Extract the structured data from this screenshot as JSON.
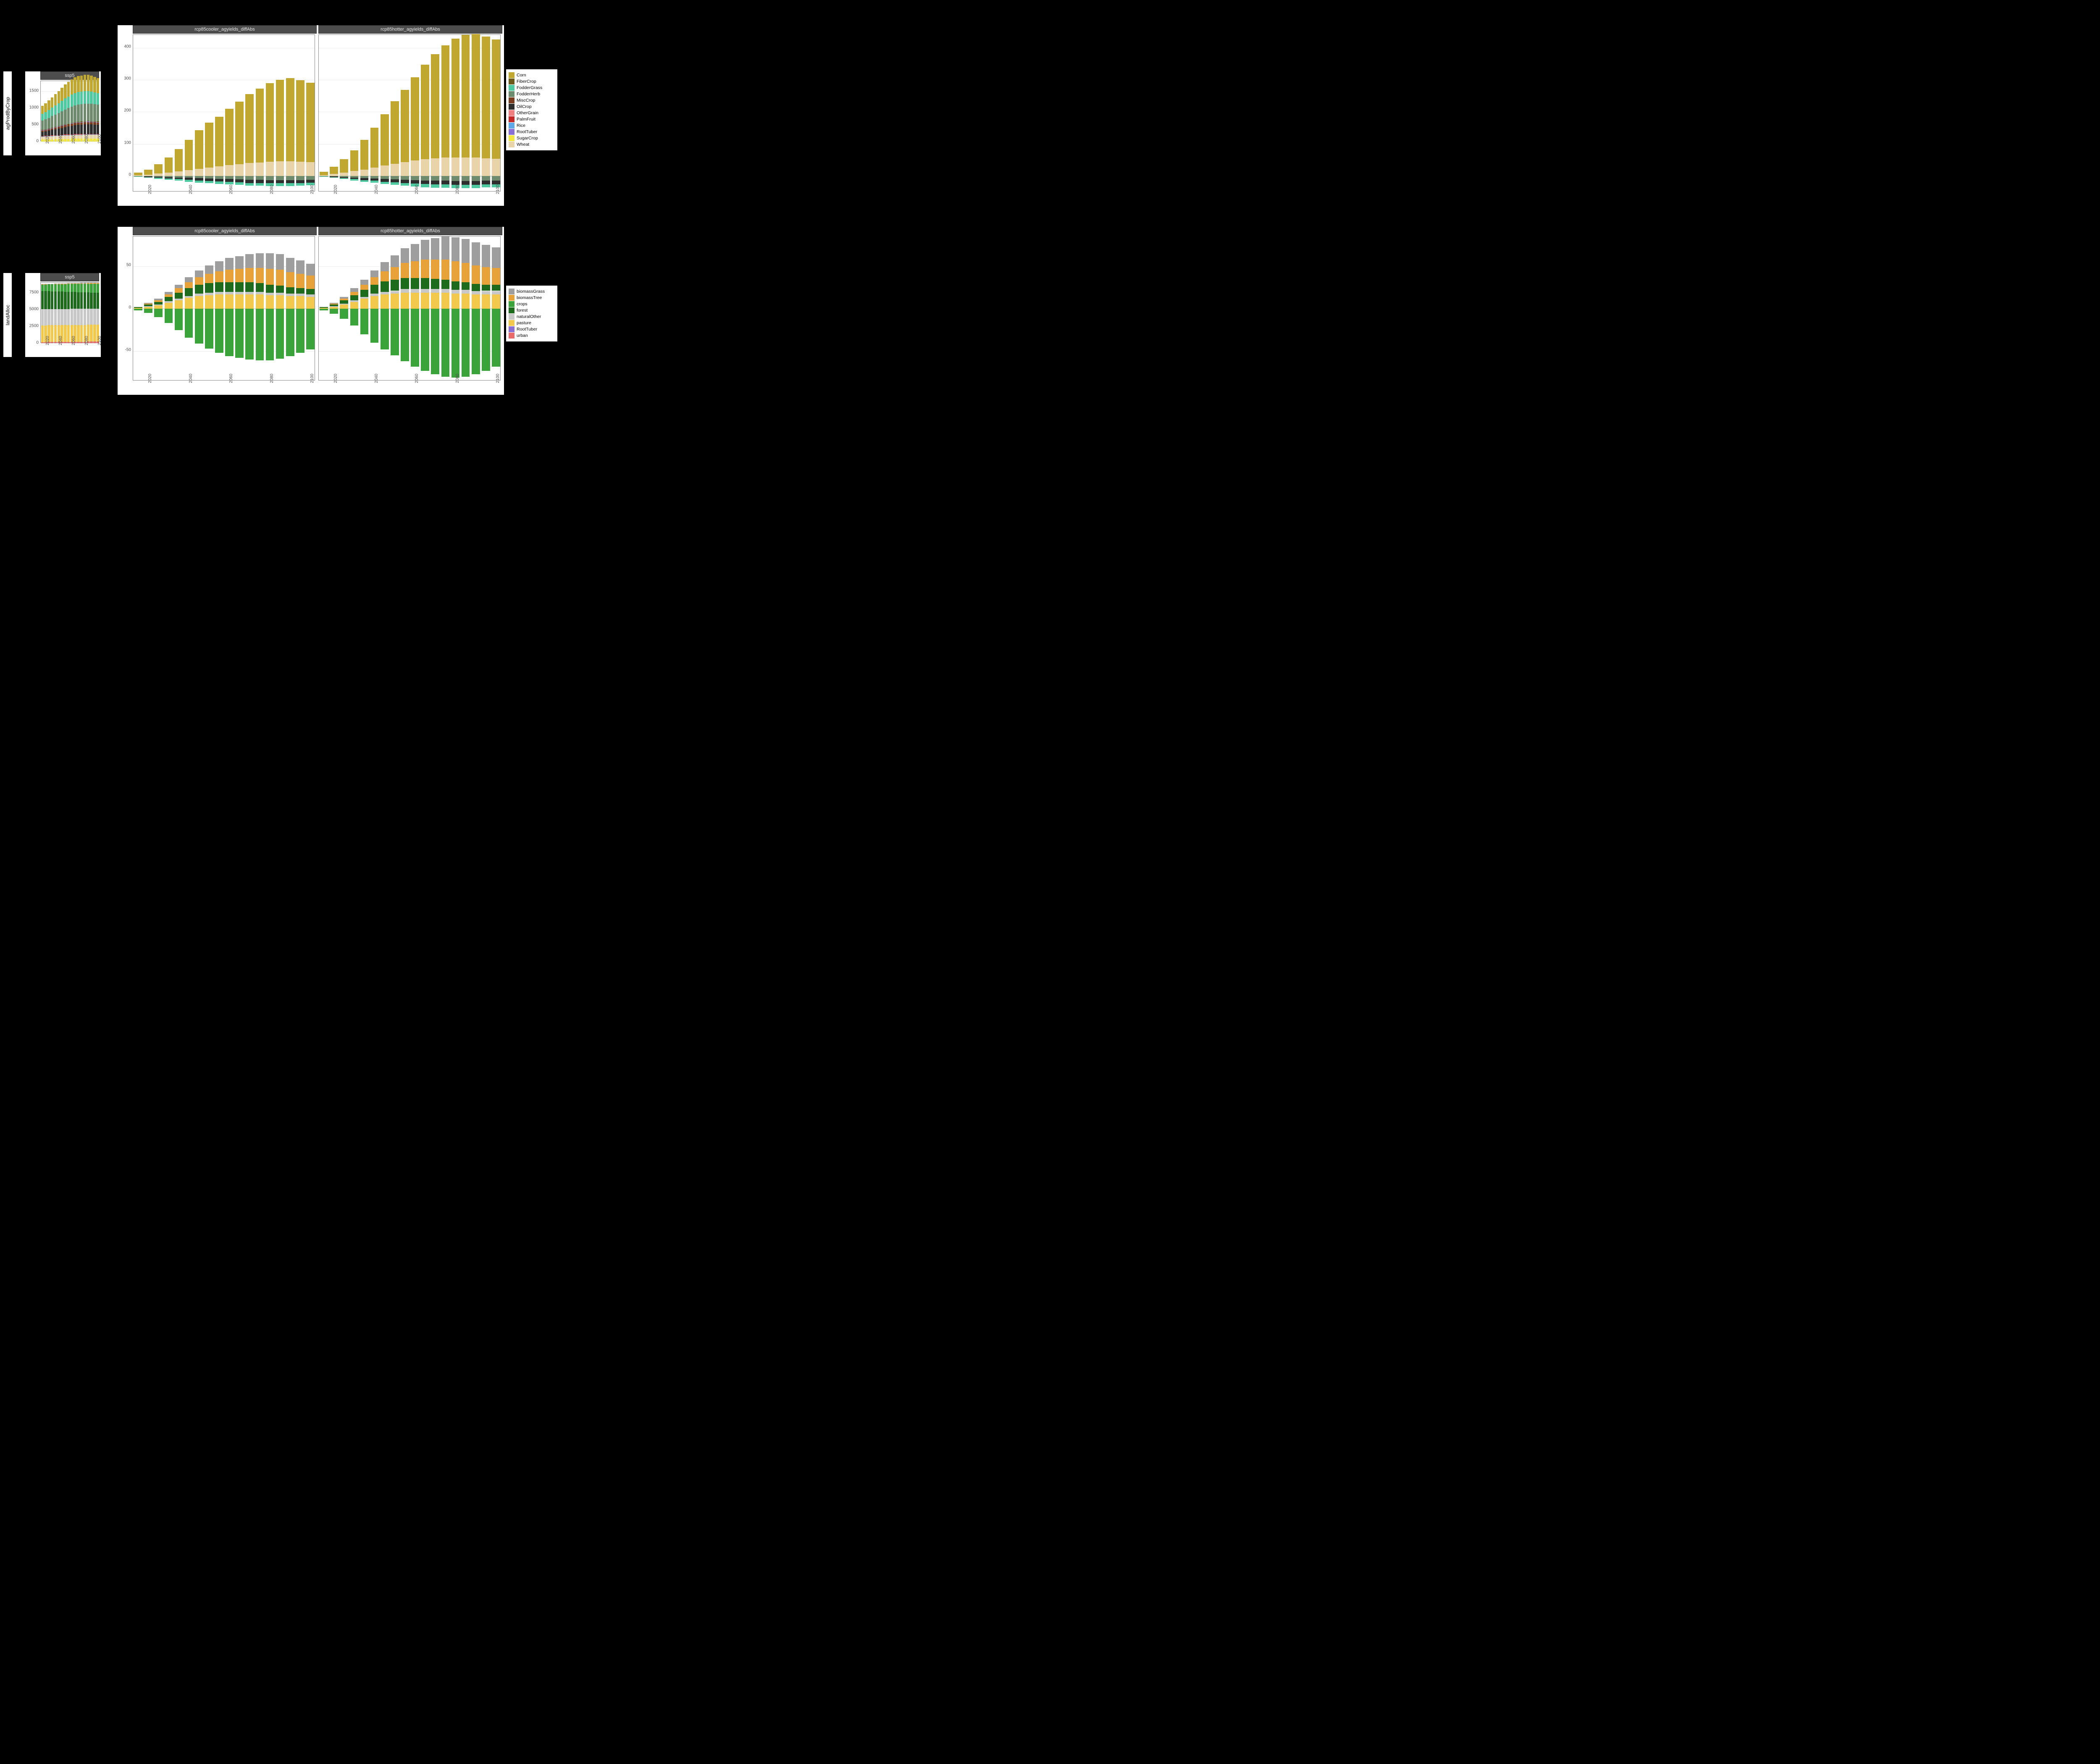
{
  "background_color": "#000000",
  "panel_bg": "#ffffff",
  "grid_color": "#ebebeb",
  "facet_strip_bg": "#4d4d4d",
  "facet_strip_fg": "#e5e5e5",
  "axis_text_color": "#4d4d4d",
  "years": [
    2015,
    2020,
    2025,
    2030,
    2035,
    2040,
    2045,
    2050,
    2055,
    2060,
    2065,
    2070,
    2075,
    2080,
    2085,
    2090,
    2095,
    2100
  ],
  "x_tick_years": [
    2020,
    2040,
    2060,
    2080,
    2100
  ],
  "row1": {
    "label": "agProdByCrop",
    "small": {
      "title": "ssp5",
      "ylim": [
        0,
        1800
      ],
      "yticks": [
        0,
        500,
        1000,
        1500
      ],
      "series_order": [
        "SugarCrop",
        "Wheat",
        "Rice",
        "OtherGrain",
        "PalmFruit",
        "OilCrop",
        "MiscCrop",
        "RootTuber",
        "FiberCrop",
        "FodderHerb",
        "FodderGrass",
        "Corn"
      ],
      "data": {
        "SugarCrop": [
          60,
          62,
          65,
          68,
          70,
          72,
          75,
          78,
          80,
          82,
          84,
          85,
          86,
          87,
          88,
          88,
          88,
          88
        ],
        "Wheat": [
          80,
          82,
          85,
          88,
          90,
          92,
          95,
          98,
          100,
          102,
          104,
          105,
          106,
          107,
          108,
          108,
          108,
          108
        ],
        "Rice": [
          10,
          10,
          11,
          11,
          12,
          12,
          12,
          13,
          13,
          13,
          14,
          14,
          14,
          14,
          14,
          14,
          14,
          14
        ],
        "OtherGrain": [
          10,
          10,
          10,
          11,
          11,
          11,
          12,
          12,
          12,
          12,
          13,
          13,
          13,
          13,
          13,
          13,
          13,
          13
        ],
        "PalmFruit": [
          5,
          5,
          5,
          6,
          6,
          6,
          6,
          7,
          7,
          7,
          7,
          7,
          8,
          8,
          8,
          8,
          8,
          8
        ],
        "OilCrop": [
          120,
          130,
          145,
          160,
          175,
          190,
          205,
          220,
          235,
          250,
          260,
          270,
          275,
          280,
          282,
          280,
          275,
          270
        ],
        "MiscCrop": [
          40,
          42,
          44,
          47,
          50,
          52,
          55,
          58,
          60,
          62,
          64,
          65,
          66,
          67,
          68,
          68,
          67,
          66
        ],
        "RootTuber": [
          10,
          10,
          10,
          11,
          11,
          11,
          12,
          12,
          12,
          13,
          13,
          13,
          13,
          14,
          14,
          14,
          14,
          14
        ],
        "FiberCrop": [
          10,
          10,
          10,
          11,
          11,
          11,
          12,
          12,
          12,
          12,
          13,
          13,
          13,
          13,
          13,
          13,
          13,
          13
        ],
        "FodderHerb": [
          280,
          300,
          320,
          345,
          370,
          395,
          420,
          445,
          465,
          485,
          500,
          510,
          515,
          520,
          522,
          518,
          510,
          500
        ],
        "FodderGrass": [
          200,
          215,
          230,
          250,
          270,
          290,
          310,
          330,
          345,
          360,
          370,
          375,
          378,
          378,
          375,
          368,
          358,
          345
        ],
        "Corn": [
          240,
          260,
          285,
          310,
          335,
          360,
          385,
          410,
          430,
          450,
          465,
          475,
          480,
          482,
          480,
          472,
          460,
          445
        ]
      }
    },
    "big": {
      "facets": [
        "rcp85cooler_agyields_diffAbs",
        "rcp85hotter_agyields_diffAbs"
      ],
      "ylim": [
        -50,
        440
      ],
      "yticks": [
        0,
        100,
        200,
        300,
        400
      ],
      "series_pos_order": [
        "Wheat",
        "Corn"
      ],
      "series_neg_order": [
        "FodderHerb",
        "OilCrop",
        "FodderGrass"
      ],
      "data": {
        "cooler": {
          "Corn": [
            8,
            15,
            30,
            48,
            70,
            95,
            120,
            140,
            155,
            175,
            195,
            215,
            230,
            245,
            255,
            260,
            255,
            248
          ],
          "Wheat": [
            2,
            4,
            7,
            10,
            14,
            18,
            22,
            26,
            30,
            34,
            37,
            40,
            42,
            44,
            45,
            45,
            44,
            43
          ],
          "FodderHerb": [
            -1,
            -2,
            -3,
            -4,
            -5,
            -6,
            -7,
            -8,
            -9,
            -10,
            -11,
            -12,
            -12,
            -13,
            -13,
            -13,
            -13,
            -12
          ],
          "OilCrop": [
            -1,
            -2,
            -3,
            -4,
            -5,
            -6,
            -7,
            -8,
            -8,
            -9,
            -9,
            -10,
            -10,
            -10,
            -10,
            -10,
            -10,
            -9
          ],
          "FodderGrass": [
            -1,
            -2,
            -3,
            -4,
            -5,
            -6,
            -7,
            -7,
            -8,
            -8,
            -8,
            -9,
            -9,
            -9,
            -9,
            -9,
            -8,
            -8
          ]
        },
        "hotter": {
          "Corn": [
            10,
            22,
            42,
            65,
            92,
            125,
            160,
            195,
            225,
            260,
            295,
            325,
            350,
            370,
            382,
            385,
            380,
            372
          ],
          "Wheat": [
            3,
            6,
            10,
            15,
            20,
            26,
            32,
            38,
            43,
            48,
            52,
            55,
            57,
            58,
            58,
            57,
            55,
            53
          ],
          "FodderHerb": [
            -1,
            -2,
            -4,
            -5,
            -7,
            -8,
            -10,
            -11,
            -12,
            -13,
            -14,
            -15,
            -15,
            -16,
            -16,
            -16,
            -15,
            -15
          ],
          "OilCrop": [
            -1,
            -2,
            -3,
            -5,
            -6,
            -7,
            -8,
            -9,
            -10,
            -11,
            -11,
            -12,
            -12,
            -12,
            -12,
            -12,
            -11,
            -11
          ],
          "FodderGrass": [
            -1,
            -2,
            -3,
            -4,
            -5,
            -6,
            -7,
            -8,
            -9,
            -9,
            -10,
            -10,
            -10,
            -10,
            -10,
            -10,
            -9,
            -9
          ]
        }
      }
    },
    "legend": [
      {
        "label": "Corn",
        "color": "#c0a830"
      },
      {
        "label": "FiberCrop",
        "color": "#6b5a1a"
      },
      {
        "label": "FodderGrass",
        "color": "#4fc9a0"
      },
      {
        "label": "FodderHerb",
        "color": "#6e8b6e"
      },
      {
        "label": "MiscCrop",
        "color": "#7a3b1e"
      },
      {
        "label": "OilCrop",
        "color": "#2e2e2e"
      },
      {
        "label": "OtherGrain",
        "color": "#f08080"
      },
      {
        "label": "PalmFruit",
        "color": "#c62828"
      },
      {
        "label": "Rice",
        "color": "#5fa8e8"
      },
      {
        "label": "RootTuber",
        "color": "#8a6fd4"
      },
      {
        "label": "SugarCrop",
        "color": "#f2e640"
      },
      {
        "label": "Wheat",
        "color": "#e8d4a8"
      }
    ]
  },
  "row2": {
    "label": "landAlloc",
    "small": {
      "title": "ssp5",
      "ylim": [
        0,
        9000
      ],
      "yticks": [
        0,
        2500,
        5000,
        7500
      ],
      "series_order": [
        "urban",
        "pasture",
        "naturalOther",
        "forest",
        "crops",
        "biomassTree",
        "biomassGrass"
      ],
      "data": {
        "urban": [
          150,
          155,
          160,
          165,
          170,
          175,
          180,
          185,
          190,
          195,
          200,
          205,
          210,
          215,
          220,
          225,
          230,
          235
        ],
        "pasture": [
          2500,
          2500,
          2500,
          2500,
          2500,
          2500,
          2500,
          2500,
          2500,
          2500,
          2500,
          2500,
          2500,
          2500,
          2500,
          2500,
          2500,
          2500
        ],
        "naturalOther": [
          2400,
          2400,
          2400,
          2400,
          2400,
          2400,
          2400,
          2400,
          2400,
          2400,
          2400,
          2400,
          2400,
          2400,
          2400,
          2400,
          2400,
          2400
        ],
        "forest": [
          2700,
          2680,
          2660,
          2640,
          2620,
          2600,
          2580,
          2560,
          2540,
          2520,
          2500,
          2480,
          2460,
          2440,
          2420,
          2400,
          2380,
          2360
        ],
        "crops": [
          1000,
          1020,
          1040,
          1060,
          1080,
          1100,
          1120,
          1140,
          1160,
          1180,
          1200,
          1220,
          1240,
          1260,
          1280,
          1300,
          1320,
          1340
        ],
        "biomassTree": [
          20,
          25,
          30,
          35,
          40,
          45,
          50,
          55,
          60,
          65,
          70,
          75,
          80,
          85,
          90,
          95,
          100,
          105
        ],
        "biomassGrass": [
          20,
          25,
          30,
          35,
          40,
          45,
          50,
          55,
          60,
          65,
          70,
          75,
          80,
          85,
          90,
          95,
          100,
          105
        ]
      }
    },
    "big": {
      "facets": [
        "rcp85cooler_agyields_diffAbs",
        "rcp85hotter_agyields_diffAbs"
      ],
      "ylim": [
        -85,
        85
      ],
      "yticks": [
        -50,
        0,
        50
      ],
      "series_pos_order": [
        "pasture",
        "naturalOther",
        "forest",
        "biomassTree",
        "biomassGrass"
      ],
      "series_neg_order": [
        "crops"
      ],
      "data": {
        "cooler": {
          "pasture": [
            1,
            2,
            4,
            7,
            10,
            13,
            15,
            16,
            17,
            17,
            17,
            17,
            17,
            16,
            16,
            15,
            15,
            14
          ],
          "naturalOther": [
            0,
            1,
            1,
            2,
            2,
            2,
            3,
            3,
            3,
            3,
            3,
            3,
            3,
            3,
            3,
            3,
            3,
            3
          ],
          "forest": [
            1,
            2,
            3,
            5,
            7,
            9,
            10,
            11,
            11,
            11,
            11,
            11,
            10,
            9,
            8,
            7,
            6,
            6
          ],
          "biomassTree": [
            0,
            1,
            2,
            3,
            5,
            7,
            9,
            11,
            13,
            15,
            16,
            17,
            18,
            19,
            19,
            18,
            17,
            16
          ],
          "biomassGrass": [
            0,
            1,
            2,
            3,
            4,
            6,
            8,
            10,
            12,
            14,
            15,
            16,
            17,
            18,
            18,
            17,
            16,
            14
          ],
          "crops": [
            -2,
            -5,
            -10,
            -17,
            -25,
            -34,
            -41,
            -47,
            -52,
            -56,
            -58,
            -60,
            -61,
            -61,
            -59,
            -56,
            -52,
            -48
          ]
        },
        "hotter": {
          "pasture": [
            1,
            2,
            5,
            8,
            12,
            15,
            17,
            18,
            19,
            19,
            19,
            19,
            19,
            18,
            18,
            17,
            17,
            17
          ],
          "naturalOther": [
            0,
            1,
            1,
            2,
            2,
            3,
            3,
            3,
            4,
            4,
            4,
            4,
            4,
            4,
            4,
            4,
            4,
            4
          ],
          "forest": [
            1,
            2,
            4,
            6,
            8,
            10,
            12,
            13,
            13,
            13,
            13,
            12,
            11,
            10,
            9,
            8,
            7,
            7
          ],
          "biomassTree": [
            0,
            1,
            2,
            4,
            6,
            9,
            12,
            15,
            18,
            20,
            22,
            23,
            24,
            24,
            23,
            22,
            21,
            20
          ],
          "biomassGrass": [
            0,
            1,
            2,
            4,
            6,
            8,
            11,
            14,
            17,
            20,
            23,
            25,
            27,
            28,
            28,
            27,
            26,
            24
          ],
          "crops": [
            -2,
            -6,
            -12,
            -20,
            -30,
            -40,
            -48,
            -55,
            -62,
            -68,
            -73,
            -77,
            -80,
            -81,
            -80,
            -77,
            -73,
            -68
          ]
        }
      }
    },
    "legend": [
      {
        "label": "biomassGrass",
        "color": "#9e9e9e"
      },
      {
        "label": "biomassTree",
        "color": "#e8a23a"
      },
      {
        "label": "crops",
        "color": "#3aa33a"
      },
      {
        "label": "forest",
        "color": "#1e6b1e"
      },
      {
        "label": "naturalOther",
        "color": "#c8c8c8"
      },
      {
        "label": "pasture",
        "color": "#f2c94c"
      },
      {
        "label": "RootTuber",
        "color": "#8a6fd4"
      },
      {
        "label": "urban",
        "color": "#e86a6a"
      }
    ]
  },
  "crop_colors": {
    "Corn": "#c0a830",
    "FiberCrop": "#6b5a1a",
    "FodderGrass": "#4fc9a0",
    "FodderHerb": "#6e8b6e",
    "MiscCrop": "#7a3b1e",
    "OilCrop": "#2e2e2e",
    "OtherGrain": "#f08080",
    "PalmFruit": "#c62828",
    "Rice": "#5fa8e8",
    "RootTuber": "#8a6fd4",
    "SugarCrop": "#f2e640",
    "Wheat": "#e8d4a8"
  },
  "land_colors": {
    "biomassGrass": "#9e9e9e",
    "biomassTree": "#e8a23a",
    "crops": "#3aa33a",
    "forest": "#1e6b1e",
    "naturalOther": "#c8c8c8",
    "pasture": "#f2c94c",
    "RootTuber": "#8a6fd4",
    "urban": "#e86a6a"
  }
}
